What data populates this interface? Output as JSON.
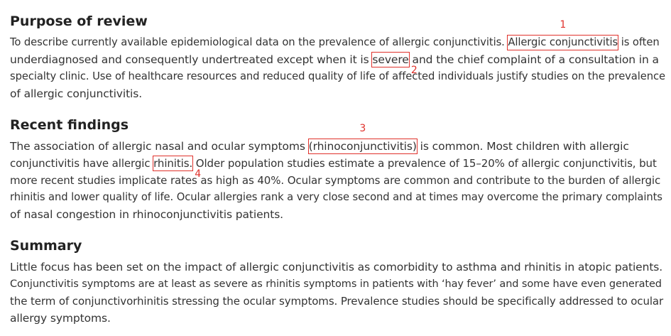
{
  "sections": [
    {
      "heading": "Purpose of review",
      "lines": [
        [
          "To describe currently available epidemiological data on the prevalence of allergic conjunctivitis. ",
          "Allergic conjunctivitis",
          " is often"
        ],
        [
          "underdiagnosed and consequently undertreated except when it is ",
          "severe",
          " and the chief complaint of a consultation in a"
        ],
        [
          "specialty clinic. Use of healthcare resources and reduced quality of life of affected individuals justify studies on the prevalence"
        ],
        [
          "of allergic conjunctivitis."
        ]
      ]
    },
    {
      "heading": "Recent findings",
      "lines": [
        [
          "The association of allergic nasal and ocular symptoms ",
          "(rhinoconjunctivitis)",
          " is common. Most children with allergic"
        ],
        [
          "conjunctivitis have allergic ",
          "rhinitis.",
          " Older population studies estimate a prevalence of 15–20% of allergic conjunctivitis, but"
        ],
        [
          "more recent studies implicate rates as high as 40%. Ocular symptoms are common and contribute to the burden of allergic"
        ],
        [
          "rhinitis and lower quality of life. Ocular allergies rank a very close second and at times may overcome the primary complaints"
        ],
        [
          "of nasal congestion in rhinoconjunctivitis patients."
        ]
      ]
    },
    {
      "heading": "Summary",
      "lines": [
        [
          "Little focus has been set on the impact of allergic conjunctivitis as comorbidity to asthma and rhinitis in atopic patients."
        ],
        [
          "Conjunctivitis symptoms are at least as severe as rhinitis symptoms in patients with ‘hay fever’ and some have even generated"
        ],
        [
          "the term of conjunctivorhinitis stressing the ocular symptoms. Prevalence studies should be specifically addressed to ocular"
        ],
        [
          "allergy symptoms."
        ]
      ]
    }
  ],
  "annotations": [
    "1",
    "2",
    "3",
    "4"
  ],
  "colors": {
    "annotation": "#e0312b",
    "text": "#333333",
    "heading": "#222222"
  }
}
